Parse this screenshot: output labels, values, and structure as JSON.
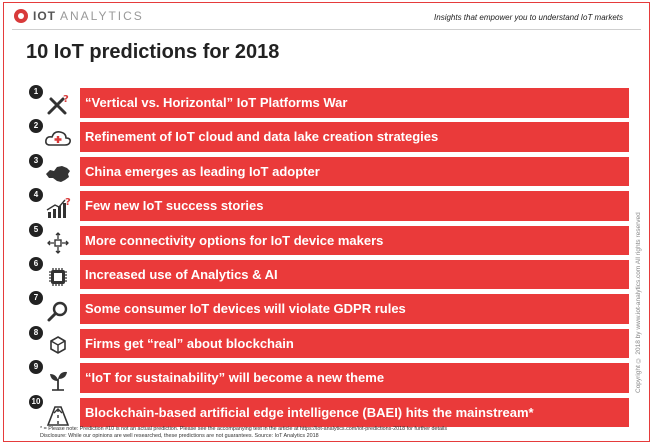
{
  "header": {
    "logo_iot": "IOT",
    "logo_analytics": "ANALYTICS",
    "tagline": "Insights that empower you to understand IoT markets"
  },
  "title": "10 IoT predictions for 2018",
  "predictions": [
    {
      "number": "1",
      "label": "“Vertical vs. Horizontal” IoT Platforms War",
      "icon": "swords-question-icon"
    },
    {
      "number": "2",
      "label": "Refinement of IoT cloud and data lake creation strategies",
      "icon": "cloud-icon"
    },
    {
      "number": "3",
      "label": "China emerges as leading IoT adopter",
      "icon": "china-map-icon"
    },
    {
      "number": "4",
      "label": "Few new IoT success stories",
      "icon": "chart-question-icon"
    },
    {
      "number": "5",
      "label": "More connectivity options for IoT device makers",
      "icon": "connectivity-icon"
    },
    {
      "number": "6",
      "label": "Increased use of Analytics & AI",
      "icon": "chip-icon"
    },
    {
      "number": "7",
      "label": "Some consumer IoT devices will violate GDPR rules",
      "icon": "magnifier-icon"
    },
    {
      "number": "8",
      "label": "Firms get “real” about blockchain",
      "icon": "blockchain-icon"
    },
    {
      "number": "9",
      "label": "“IoT for sustainability” will become a new theme",
      "icon": "plant-icon"
    },
    {
      "number": "10",
      "label": "Blockchain-based artificial edge intelligence (BAEI) hits the mainstream*",
      "icon": "road-icon"
    }
  ],
  "footnote": {
    "line1": "* = Please note: Prediction #10 is not an actual prediction. Please see the accompanying text in the article at https://iot-analytics.com/iot-predictions-2018 for further details",
    "line2": "Disclosure: While our opinions are well researched, these predictions are not guarantees.   Source: IoT Analytics 2018"
  },
  "copyright": "Copyright © 2018 by www.iot-analytics.com All rights reserved",
  "colors": {
    "accent": "#ea3a3a",
    "border": "#e53b3b",
    "text": "#222222"
  }
}
